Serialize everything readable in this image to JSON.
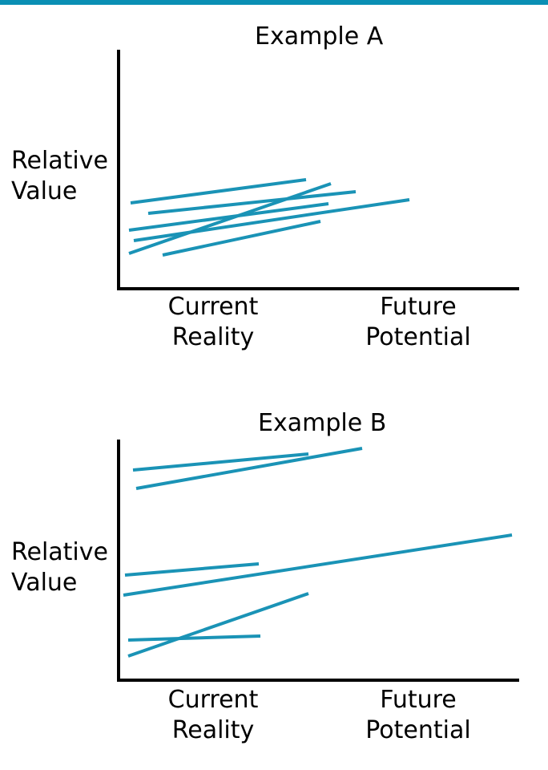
{
  "header_bar_color": "#0a8fb4",
  "line_color": "#1a93b6",
  "diagrams": [
    {
      "title": "Example A",
      "ylabel_line1": "Relative",
      "ylabel_line2": "Value",
      "xlabel_left_line1": "Current",
      "xlabel_left_line2": "Reality",
      "xlabel_right_line1": "Future",
      "xlabel_right_line2": "Potential"
    },
    {
      "title": "Example B",
      "ylabel_line1": "Relative",
      "ylabel_line2": "Value",
      "xlabel_left_line1": "Current",
      "xlabel_left_line2": "Reality",
      "xlabel_right_line1": "Future",
      "xlabel_right_line2": "Potential"
    }
  ]
}
